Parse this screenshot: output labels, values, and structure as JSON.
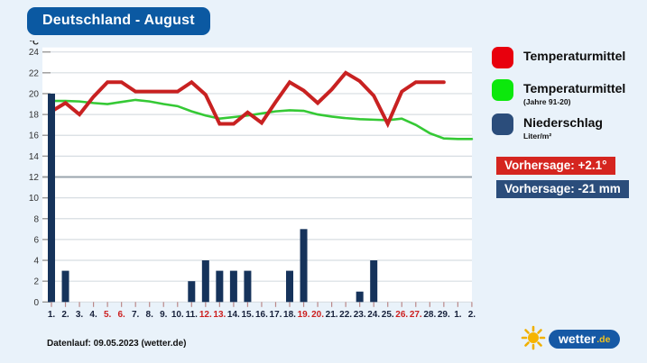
{
  "title": "Deutschland - August",
  "colors": {
    "title_bg": "#0b59a2",
    "page_bg": "#e9f2fa",
    "temp_line": "#c82121",
    "climate_line": "#35c935",
    "precip_bar": "#16335b",
    "legend_red": "#e8000d",
    "legend_green": "#0ce80c",
    "legend_navy": "#2b4d7b",
    "badge_red": "#d5251f",
    "badge_navy": "#2b4d7b",
    "grid": "#d7dde2",
    "grid_emphasis": "#9aa4ad",
    "weekend_label": "#cc1f1f",
    "weekday_label": "#16203a"
  },
  "legend": [
    {
      "label": "Temperaturmittel",
      "sub": "",
      "color": "#e8000d"
    },
    {
      "label": "Temperaturmittel",
      "sub": "(Jahre 91-20)",
      "color": "#0ce80c"
    },
    {
      "label": "Niederschlag",
      "sub": "Liter/m²",
      "color": "#2b4d7b"
    }
  ],
  "badges": [
    {
      "text": "Vorhersage: +2.1°",
      "color": "#d5251f"
    },
    {
      "text": "Vorhersage: -21 mm",
      "color": "#2b4d7b"
    }
  ],
  "footer": "Datenlauf: 09.05.2023 (wetter.de)",
  "logo": {
    "text": "wetter",
    "tld": ".de"
  },
  "chart_data": {
    "type": "line+bar",
    "title": "Deutschland - August",
    "ylabel": "°C",
    "ylim": [
      0,
      24
    ],
    "yticks": [
      0,
      2,
      4,
      6,
      8,
      10,
      12,
      14,
      16,
      18,
      20,
      22,
      24
    ],
    "emphasized_gridline": 12,
    "grid": true,
    "legend_position": "right",
    "x_labels": [
      "1.",
      "2.",
      "3.",
      "4.",
      "5.",
      "6.",
      "7.",
      "8.",
      "9.",
      "10.",
      "11.",
      "12.",
      "13.",
      "14.",
      "15.",
      "16.",
      "17.",
      "18.",
      "19.",
      "20.",
      "21.",
      "22.",
      "23.",
      "24.",
      "25.",
      "26.",
      "27.",
      "28.",
      "29.",
      "1.",
      "2."
    ],
    "weekend_indices": [
      4,
      5,
      11,
      12,
      18,
      19,
      25,
      26
    ],
    "series": [
      {
        "name": "Temperaturmittel",
        "type": "line",
        "color": "#c82121",
        "values": [
          18.3,
          19.1,
          18.0,
          19.7,
          21.1,
          21.1,
          20.2,
          20.2,
          20.2,
          20.2,
          21.1,
          19.9,
          17.1,
          17.1,
          18.2,
          17.2,
          19.2,
          21.1,
          20.3,
          19.1,
          20.4,
          22.0,
          21.2,
          19.8,
          17.1,
          20.2,
          21.1,
          21.1,
          21.1
        ]
      },
      {
        "name": "Temperaturmittel (Jahre 91-20)",
        "type": "line",
        "color": "#35c935",
        "values": [
          19.3,
          19.3,
          19.25,
          19.1,
          19.0,
          19.2,
          19.4,
          19.25,
          19.0,
          18.8,
          18.3,
          17.9,
          17.6,
          17.75,
          17.9,
          18.1,
          18.3,
          18.4,
          18.35,
          18.0,
          17.8,
          17.65,
          17.55,
          17.5,
          17.45,
          17.6,
          17.0,
          16.2,
          15.7,
          15.65,
          15.65
        ]
      },
      {
        "name": "Niederschlag (Liter/m²)",
        "type": "bar",
        "color": "#16335b",
        "values": [
          20,
          3,
          0,
          0,
          0,
          0,
          0,
          0,
          0,
          0,
          2,
          4,
          3,
          3,
          3,
          0,
          0,
          3,
          7,
          0,
          0,
          0,
          1,
          4,
          0,
          0,
          0,
          0,
          0,
          0,
          0
        ]
      }
    ]
  }
}
